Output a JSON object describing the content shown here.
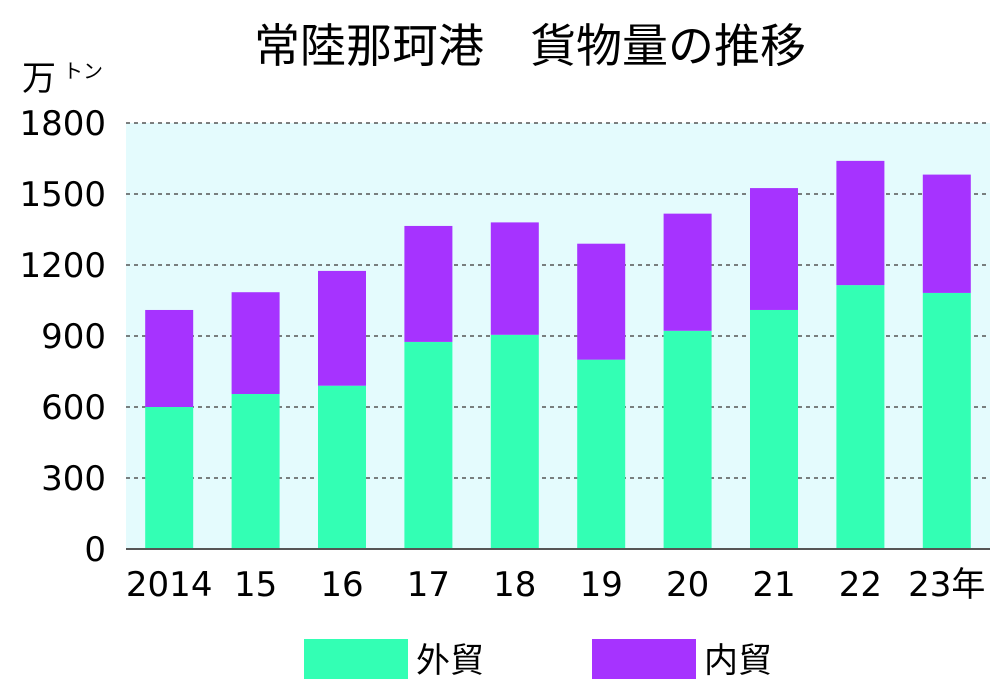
{
  "chart_data": {
    "type": "bar",
    "stacked": true,
    "title": "常陸那珂港　貨物量の推移",
    "ylabel": "万",
    "ylabel_small": "トン",
    "xlabel": "",
    "ylim": [
      0,
      1800
    ],
    "yticks": [
      0,
      300,
      600,
      900,
      1200,
      1500,
      1800
    ],
    "categories": [
      "2014",
      "15",
      "16",
      "17",
      "18",
      "19",
      "20",
      "21",
      "22",
      "23年"
    ],
    "series": [
      {
        "name": "外貿",
        "color": "#33ffb4",
        "values": [
          600,
          655,
          690,
          875,
          905,
          800,
          922,
          1010,
          1115,
          1082
        ]
      },
      {
        "name": "内貿",
        "color": "#a633ff",
        "values": [
          410,
          430,
          485,
          490,
          475,
          490,
          495,
          515,
          525,
          500
        ]
      }
    ],
    "grid": true,
    "legend_position": "bottom",
    "plot_background": "#e4fbfd"
  }
}
